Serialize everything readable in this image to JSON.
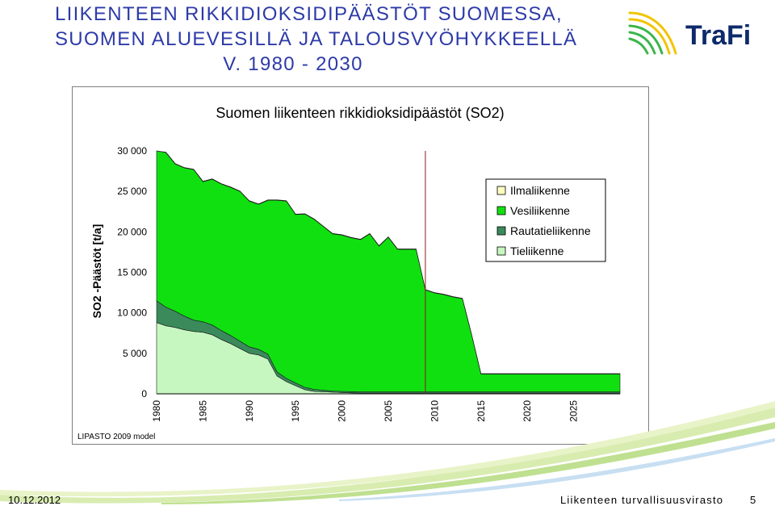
{
  "slide": {
    "title_lines": [
      "LIIKENTEEN RIKKIDIOKSIDIPÄÄSTÖT SUOMESSA,",
      "SUOMEN ALUEVESILLÄ JA TALOUSVYÖHYKKEELLÄ",
      "V. 1980 - 2030"
    ],
    "logo_text": "TraFi",
    "footer_date": "10.12.2012",
    "footer_agency": "Liikenteen turvallisuusvirasto",
    "page_number": "5"
  },
  "colors": {
    "title": "#2d3aa8",
    "logo_text": "#0d2a6b",
    "logo_yellow": "#f2c400",
    "logo_green": "#3bb54a",
    "road": "#c7f7c0",
    "rail": "#3a8a5c",
    "water": "#10e010",
    "air": "#fdfdc0",
    "marker": "#8b1a1a"
  },
  "chart_data": {
    "type": "area",
    "stacked": true,
    "title": "Suomen liikenteen rikkidioksidipäästöt (SO2)",
    "ylabel": "SO2 -Päästöt [t/a]",
    "xlabel": "",
    "source_note": "LIPASTO 2009 model",
    "ylim": [
      0,
      30000
    ],
    "xlim": [
      1980,
      2030
    ],
    "yticks": [
      0,
      5000,
      10000,
      15000,
      20000,
      25000,
      30000
    ],
    "ytick_labels": [
      "0",
      "5 000",
      "10 000",
      "15 000",
      "20 000",
      "25 000",
      "30 000"
    ],
    "xticks": [
      1980,
      1985,
      1990,
      1995,
      2000,
      2005,
      2010,
      2015,
      2020,
      2025
    ],
    "marker_line_x": 2009,
    "grid": false,
    "legend_position": "right",
    "x": [
      1980,
      1981,
      1982,
      1983,
      1984,
      1985,
      1986,
      1987,
      1988,
      1989,
      1990,
      1991,
      1992,
      1993,
      1994,
      1995,
      1996,
      1997,
      1998,
      1999,
      2000,
      2001,
      2002,
      2003,
      2004,
      2005,
      2006,
      2007,
      2008,
      2009,
      2010,
      2011,
      2012,
      2013,
      2014,
      2015,
      2016,
      2017,
      2018,
      2019,
      2020,
      2021,
      2022,
      2023,
      2024,
      2025,
      2026,
      2027,
      2028,
      2029,
      2030
    ],
    "series": [
      {
        "name": "Tieliikenne",
        "color": "#c7f7c0",
        "values": [
          8800,
          8400,
          8200,
          7900,
          7700,
          7600,
          7300,
          6700,
          6200,
          5600,
          5000,
          4800,
          4300,
          2200,
          1500,
          1000,
          500,
          300,
          250,
          200,
          150,
          120,
          100,
          100,
          100,
          100,
          100,
          100,
          100,
          100,
          100,
          100,
          100,
          100,
          100,
          100,
          100,
          100,
          100,
          100,
          100,
          100,
          100,
          100,
          100,
          100,
          100,
          100,
          100,
          100,
          100
        ]
      },
      {
        "name": "Rautatieliikenne",
        "color": "#3a8a5c",
        "values": [
          2700,
          2300,
          2000,
          1700,
          1400,
          1300,
          1200,
          1100,
          1000,
          900,
          800,
          700,
          600,
          500,
          400,
          350,
          300,
          250,
          200,
          150,
          150,
          150,
          150,
          150,
          150,
          150,
          150,
          150,
          150,
          150,
          150,
          150,
          150,
          150,
          150,
          150,
          150,
          150,
          150,
          150,
          150,
          150,
          150,
          150,
          150,
          150,
          150,
          150,
          150,
          150,
          150
        ]
      },
      {
        "name": "Vesiliikenne",
        "color": "#10e010",
        "values": [
          18900,
          19100,
          18200,
          18300,
          18600,
          17300,
          18000,
          18100,
          18300,
          18500,
          18000,
          17900,
          19000,
          21200,
          21900,
          20800,
          21400,
          21000,
          20200,
          19400,
          19300,
          19000,
          18800,
          19500,
          18000,
          19100,
          17600,
          17600,
          17600,
          12600,
          12200,
          12000,
          11700,
          11500,
          7000,
          2200,
          2200,
          2200,
          2200,
          2200,
          2200,
          2200,
          2200,
          2200,
          2200,
          2200,
          2200,
          2200,
          2200,
          2200,
          2200
        ]
      },
      {
        "name": "Ilmaliikenne",
        "color": "#fdfdc0",
        "values": [
          50,
          50,
          50,
          50,
          50,
          50,
          50,
          50,
          50,
          50,
          50,
          50,
          50,
          50,
          50,
          50,
          50,
          50,
          50,
          50,
          50,
          50,
          50,
          50,
          50,
          50,
          50,
          50,
          50,
          50,
          50,
          50,
          50,
          50,
          50,
          50,
          50,
          50,
          50,
          50,
          50,
          50,
          50,
          50,
          50,
          50,
          50,
          50,
          50,
          50,
          50
        ]
      }
    ],
    "legend_order": [
      "Ilmaliikenne",
      "Vesiliikenne",
      "Rautatieliikenne",
      "Tieliikenne"
    ]
  }
}
